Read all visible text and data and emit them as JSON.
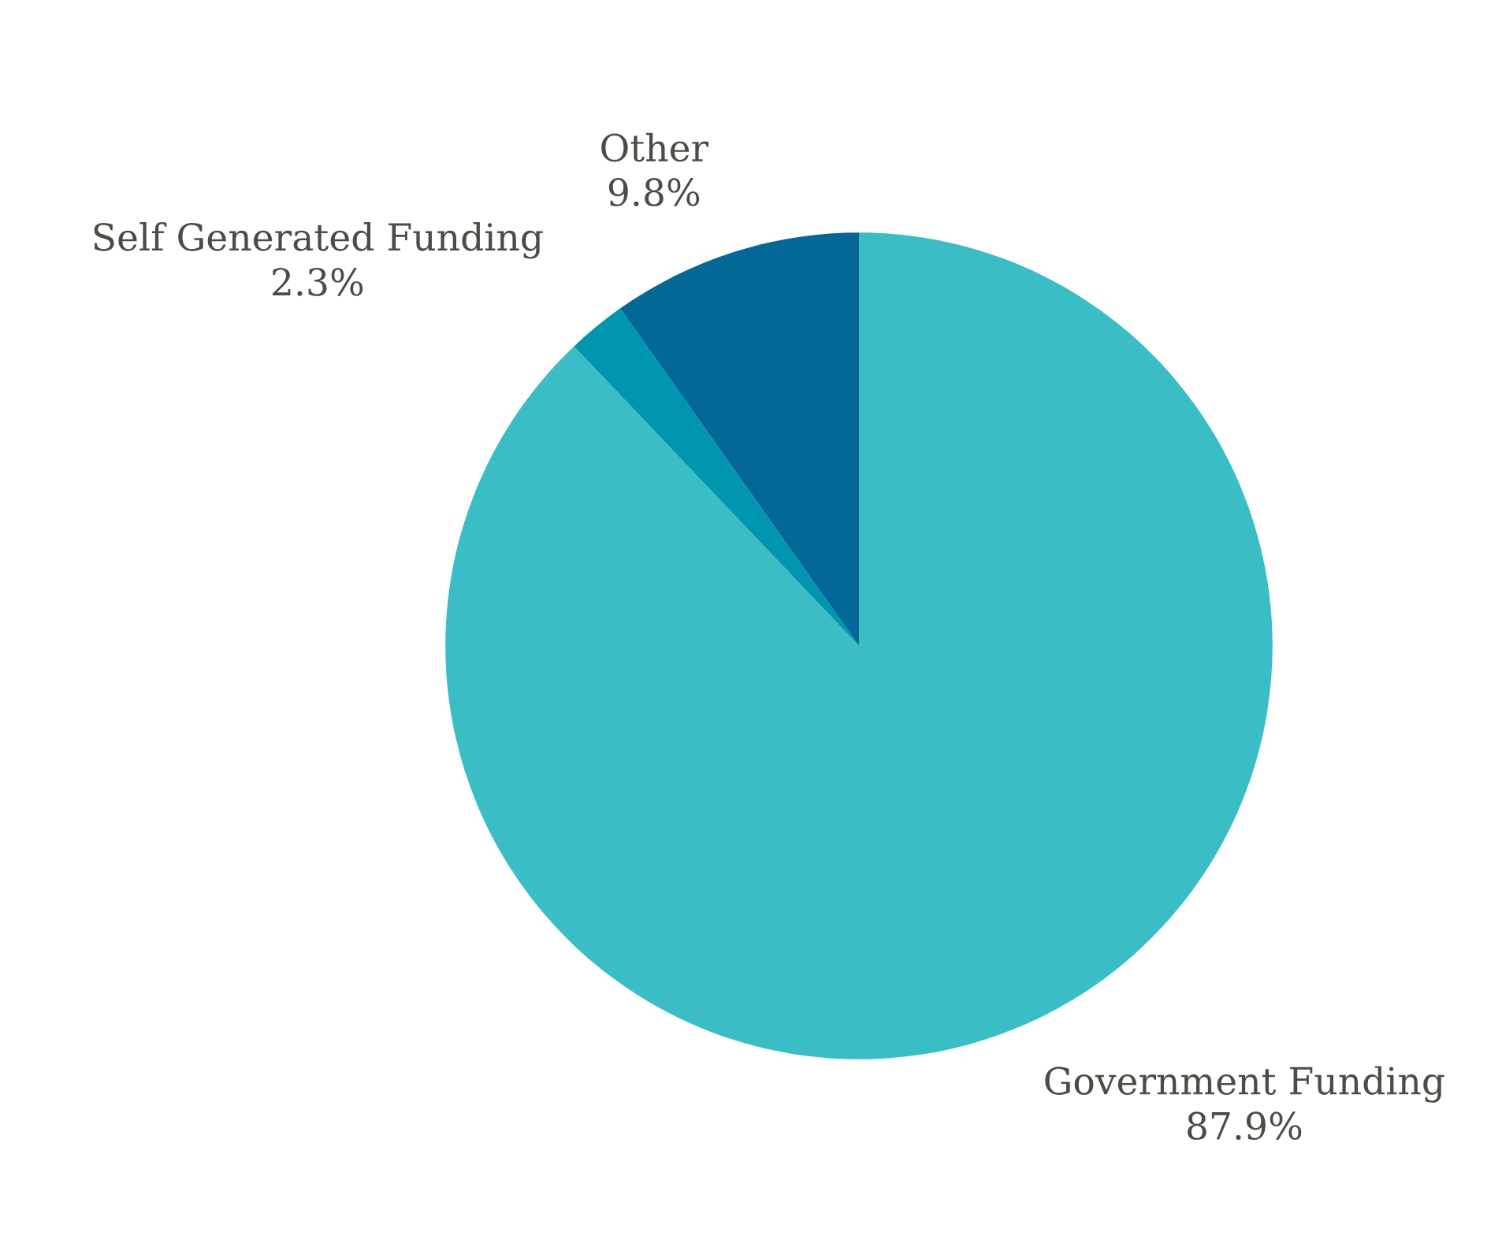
{
  "chart_data": {
    "type": "pie",
    "categories": [
      "Government Funding",
      "Self Generated Funding",
      "Other"
    ],
    "values": [
      87.9,
      2.3,
      9.8
    ],
    "colors": [
      "#3bbdc6",
      "#0096b0",
      "#036897"
    ],
    "value_labels": [
      "87.9%",
      "2.3%",
      "9.8%"
    ]
  }
}
